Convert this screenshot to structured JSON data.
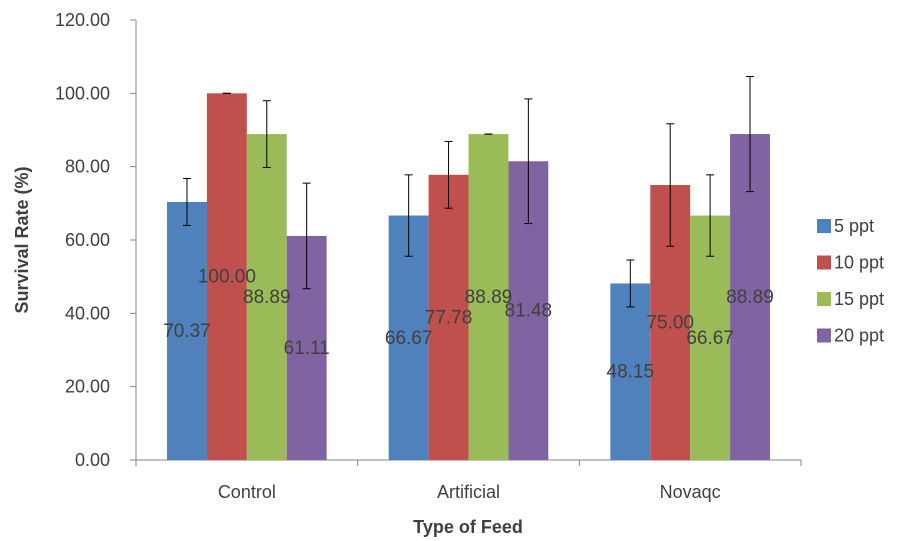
{
  "chart_data": {
    "type": "bar",
    "title": "",
    "xlabel": "Type of Feed",
    "ylabel": "Survival Rate (%)",
    "ylim": [
      0,
      120
    ],
    "yticks": [
      "0.00",
      "20.00",
      "40.00",
      "60.00",
      "80.00",
      "100.00",
      "120.00"
    ],
    "grid": false,
    "legend_position": "right",
    "categories": [
      "Control",
      "Artificial",
      "Novaqc"
    ],
    "series": [
      {
        "name": "5 ppt",
        "color": "#4F81BD",
        "values": [
          70.37,
          66.67,
          48.15
        ],
        "labels": [
          "70.37",
          "66.67",
          "48.15"
        ],
        "error": [
          6.4,
          11.1,
          6.4
        ]
      },
      {
        "name": "10 ppt",
        "color": "#C0504D",
        "values": [
          100.0,
          77.78,
          75.0
        ],
        "labels": [
          "100.00",
          "77.78",
          "75.00"
        ],
        "error": [
          0,
          9.1,
          16.7
        ]
      },
      {
        "name": "15 ppt",
        "color": "#9BBB59",
        "values": [
          88.89,
          88.89,
          66.67
        ],
        "labels": [
          "88.89",
          "88.89",
          "66.67"
        ],
        "error": [
          9.1,
          0,
          11.1
        ]
      },
      {
        "name": "20 ppt",
        "color": "#8064A2",
        "values": [
          61.11,
          81.48,
          88.89
        ],
        "labels": [
          "61.11",
          "81.48",
          "88.89"
        ],
        "error": [
          14.4,
          17.0,
          15.7
        ]
      }
    ]
  }
}
